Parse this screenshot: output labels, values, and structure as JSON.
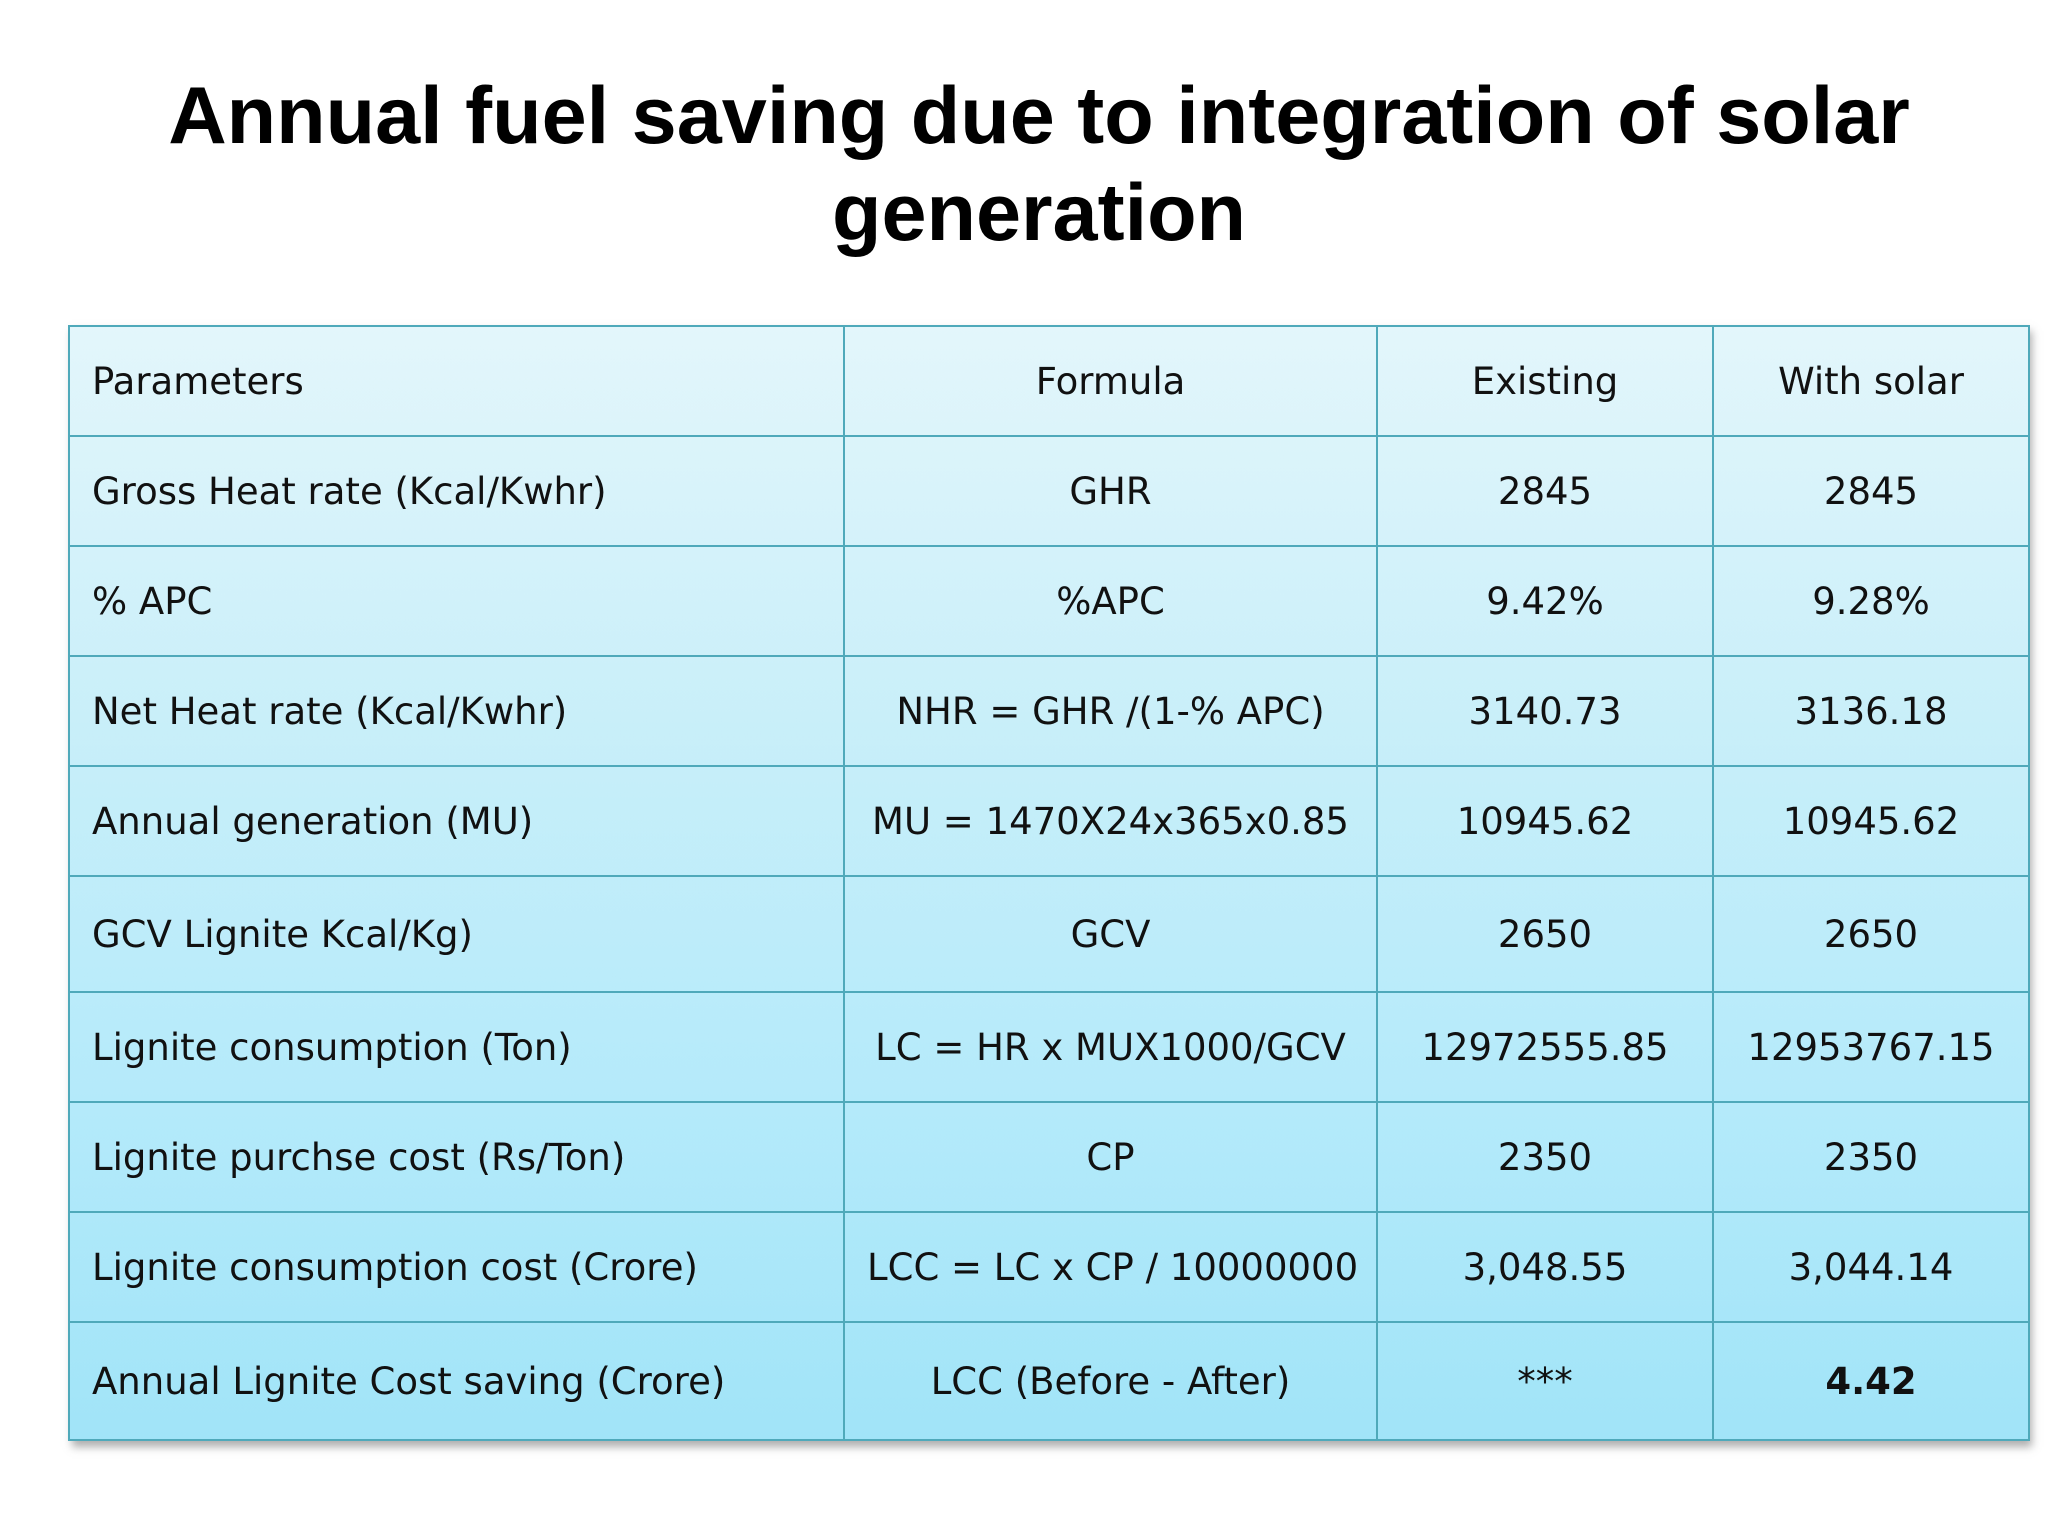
{
  "slide": {
    "title_line1": "Annual fuel saving due to integration of solar",
    "title_line2": "generation"
  },
  "table": {
    "headers": [
      "Parameters",
      "Formula",
      "Existing",
      "With solar"
    ],
    "rows": [
      [
        "Gross Heat rate (Kcal/Kwhr)",
        "GHR",
        "2845",
        "2845"
      ],
      [
        "% APC",
        "%APC",
        "9.42%",
        "9.28%"
      ],
      [
        "Net Heat rate (Kcal/Kwhr)",
        "NHR = GHR /(1-% APC)",
        "3140.73",
        "3136.18"
      ],
      [
        "Annual generation (MU)",
        "MU = 1470X24x365x0.85",
        "10945.62",
        "10945.62"
      ],
      [
        "GCV Lignite Kcal/Kg)",
        "GCV",
        "2650",
        "2650"
      ],
      [
        "Lignite consumption (Ton)",
        "LC = HR x MUX1000/GCV",
        "12972555.85",
        "12953767.15"
      ],
      [
        "Lignite purchse cost (Rs/Ton)",
        "CP",
        "2350",
        "2350"
      ],
      [
        "Lignite consumption cost (Crore)",
        "LCC = LC x CP / 10000000",
        "3,048.55",
        "3,044.14"
      ],
      [
        "Annual Lignite Cost saving (Crore)",
        "LCC (Before - After)",
        "***",
        "4.42"
      ]
    ]
  }
}
